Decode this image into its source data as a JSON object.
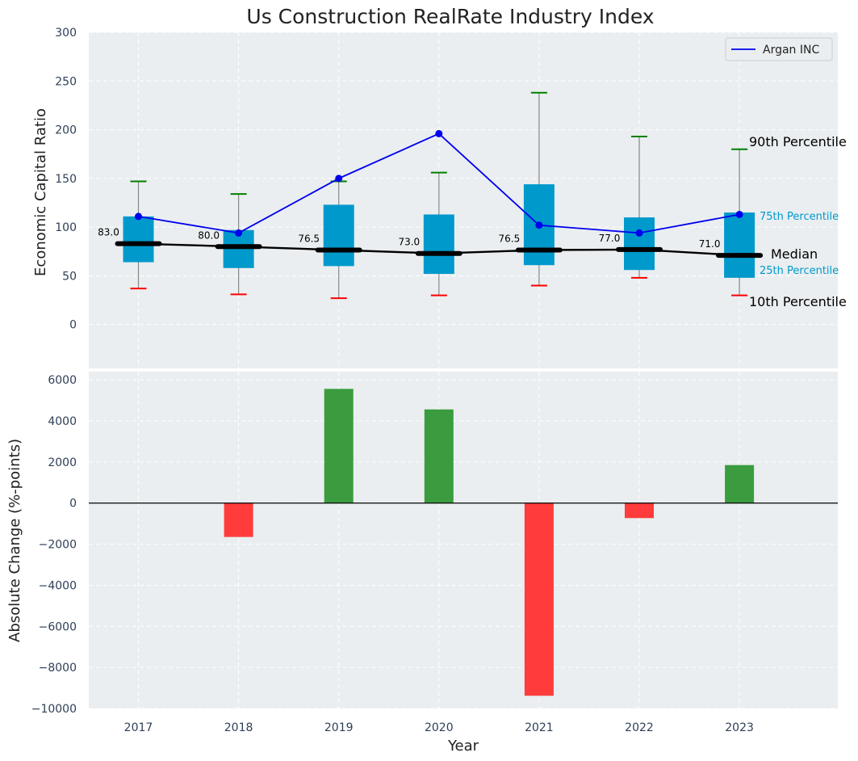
{
  "chart_data": [
    {
      "type": "box",
      "title": "Us Construction RealRate Industry Index",
      "ylabel": "Economic Capital Ratio",
      "ylim": [
        -45,
        300
      ],
      "yticks": [
        0,
        50,
        100,
        150,
        200,
        250,
        300
      ],
      "categories": [
        "2017",
        "2018",
        "2019",
        "2020",
        "2021",
        "2022",
        "2023"
      ],
      "boxes": [
        {
          "p10": 37,
          "p25": 64,
          "median": 83.0,
          "p75": 111,
          "p90": 147
        },
        {
          "p10": 31,
          "p25": 58,
          "median": 80.0,
          "p75": 97,
          "p90": 134
        },
        {
          "p10": 27,
          "p25": 60,
          "median": 76.5,
          "p75": 123,
          "p90": 147
        },
        {
          "p10": 30,
          "p25": 52,
          "median": 73.0,
          "p75": 113,
          "p90": 156
        },
        {
          "p10": 40,
          "p25": 61,
          "median": 76.5,
          "p75": 144,
          "p90": 238
        },
        {
          "p10": 48,
          "p25": 56,
          "median": 77.0,
          "p75": 110,
          "p90": 193
        },
        {
          "p10": 30,
          "p25": 48,
          "median": 71.0,
          "p75": 115,
          "p90": 180
        }
      ],
      "median_labels": [
        "83.0",
        "80.0",
        "76.5",
        "73.0",
        "76.5",
        "77.0",
        "71.0"
      ],
      "series": [
        {
          "name": "Argan INC",
          "color": "#0000ee",
          "values": [
            111,
            94,
            150,
            196,
            102,
            94,
            113
          ]
        }
      ],
      "legend": {
        "position": "top-right",
        "entries": [
          "Argan INC"
        ]
      },
      "annotations": {
        "p90": "90th Percentile",
        "p75": "75th Percentile",
        "median": "Median",
        "p25": "25th Percentile",
        "p10": "10th Percentile"
      },
      "colors": {
        "box": "#0099cc",
        "whisker_top": "#008000",
        "whisker_bottom": "#ff0000",
        "median": "#000000",
        "background": "#eaeef0"
      }
    },
    {
      "type": "bar",
      "ylabel": "Absolute Change (%-points)",
      "xlabel": "Year",
      "ylim": [
        -10000,
        6400
      ],
      "yticks": [
        -10000,
        -8000,
        -6000,
        -4000,
        -2000,
        0,
        2000,
        4000,
        6000
      ],
      "ytick_labels": [
        "−10000",
        "−8000",
        "−6000",
        "−4000",
        "−2000",
        "0",
        "2000",
        "4000",
        "6000"
      ],
      "categories": [
        "2017",
        "2018",
        "2019",
        "2020",
        "2021",
        "2022",
        "2023"
      ],
      "values": [
        0,
        -1650,
        5560,
        4560,
        -9380,
        -730,
        1850
      ],
      "colors": {
        "positive": "#3a9c3e",
        "negative": "#ff3b3b"
      }
    }
  ]
}
